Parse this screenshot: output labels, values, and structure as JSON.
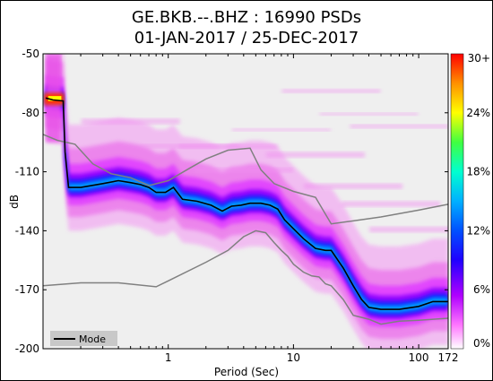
{
  "chart_data": {
    "type": "heatmap",
    "title_line1": "GE.BKB.--.BHZ : 16990 PSDs",
    "title_line2": "01-JAN-2017 / 25-DEC-2017",
    "xlabel": "Period (Sec)",
    "ylabel": "dB",
    "x_scale": "log",
    "xlim": [
      0.1,
      172
    ],
    "ylim": [
      -200,
      -50
    ],
    "x_ticks": [
      {
        "value": 1,
        "label": "1"
      },
      {
        "value": 10,
        "label": "10"
      },
      {
        "value": 100,
        "label": "100"
      },
      {
        "value": 172,
        "label": "172"
      }
    ],
    "y_ticks": [
      {
        "value": -50,
        "label": "-50"
      },
      {
        "value": -80,
        "label": "-80"
      },
      {
        "value": -110,
        "label": "-110"
      },
      {
        "value": -140,
        "label": "-140"
      },
      {
        "value": -170,
        "label": "-170"
      },
      {
        "value": -200,
        "label": "-200"
      }
    ],
    "colorbar": {
      "labels": [
        "0%",
        "6%",
        "12%",
        "18%",
        "24%",
        "30+"
      ],
      "colors": [
        "#ffffff",
        "#ff66ff",
        "#7a00ff",
        "#0000ff",
        "#0090ff",
        "#00e0ff",
        "#00ff80",
        "#80ff00",
        "#ffff00",
        "#ffa000",
        "#ff0000"
      ]
    },
    "legend": {
      "entries": [
        "Mode"
      ],
      "placement": "bottom-left"
    },
    "mode_series": {
      "name": "Mode",
      "x": [
        0.105,
        0.12,
        0.145,
        0.15,
        0.16,
        0.2,
        0.3,
        0.4,
        0.5,
        0.6,
        0.7,
        0.8,
        0.95,
        1.1,
        1.3,
        1.7,
        2.2,
        2.7,
        3.2,
        3.8,
        4.5,
        5.5,
        6.5,
        7.5,
        8.5,
        10,
        12,
        15,
        18,
        20,
        25,
        30,
        35,
        40,
        50,
        70,
        100,
        130,
        150,
        172
      ],
      "y": [
        -72.5,
        -73.5,
        -74,
        -100,
        -118,
        -118,
        -116,
        -114.5,
        -115.5,
        -116.5,
        -118,
        -120.5,
        -120.5,
        -118,
        -124,
        -125,
        -127,
        -130,
        -127.5,
        -127,
        -126,
        -126,
        -127,
        -129,
        -134.5,
        -139,
        -144,
        -149,
        -150,
        -150,
        -159,
        -168,
        -175,
        -179,
        -180,
        -180,
        -178.5,
        -176,
        -176,
        -176
      ]
    },
    "nlnm_series": {
      "x": [
        0.1,
        0.2,
        0.4,
        0.8,
        1.0,
        2.0,
        3.0,
        4.0,
        5.0,
        6.0,
        7.0,
        8.0,
        9.0,
        10,
        12,
        14,
        16,
        18,
        20,
        25,
        30,
        40,
        50,
        70,
        100,
        172
      ],
      "y": [
        -168,
        -166.5,
        -166.5,
        -168.5,
        -165.5,
        -156,
        -150,
        -143,
        -140,
        -141,
        -146,
        -150,
        -153,
        -157,
        -161,
        -163,
        -163.5,
        -167,
        -168,
        -175,
        -183,
        -185,
        -187.5,
        -186,
        -185.5,
        -184.5
      ]
    },
    "nhnm_series": {
      "x": [
        0.1,
        0.13,
        0.18,
        0.25,
        0.35,
        0.5,
        0.7,
        1.0,
        1.5,
        2.0,
        3.0,
        4.5,
        5.5,
        7.0,
        10,
        15,
        20,
        30,
        50,
        100,
        172
      ],
      "y": [
        -91,
        -94,
        -96,
        -106,
        -111,
        -113,
        -117,
        -114.5,
        -108,
        -103.5,
        -99,
        -98,
        -109,
        -116,
        -120,
        -123,
        -136.5,
        -135,
        -133,
        -129.5,
        -126.5
      ]
    },
    "grid": false
  }
}
